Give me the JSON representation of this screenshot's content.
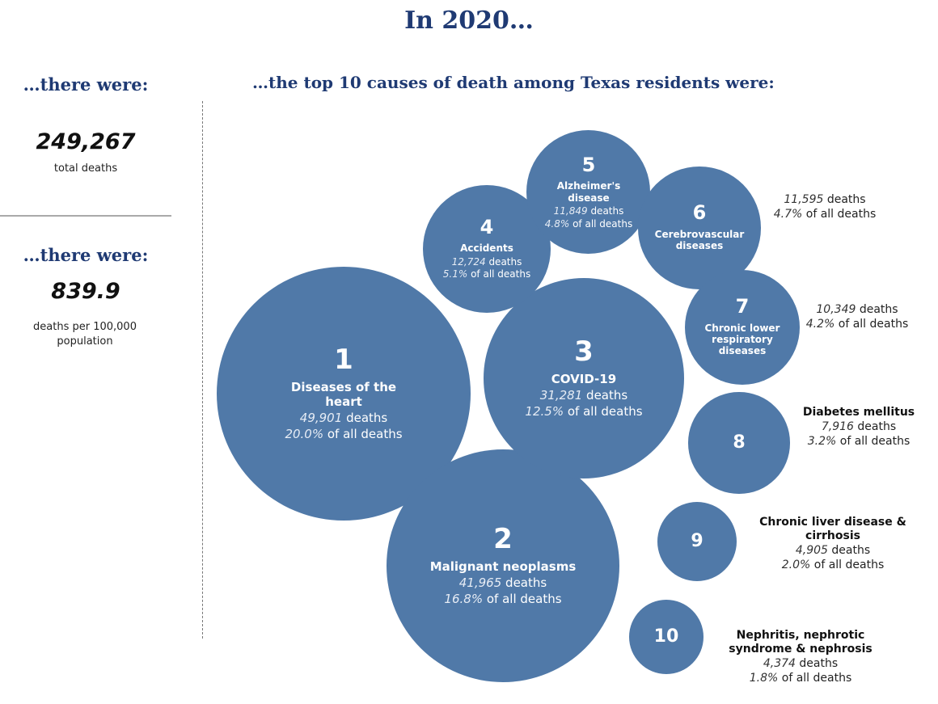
{
  "title": "In 2020…",
  "totals": {
    "heading": "…there were:",
    "value": "249,267",
    "caption": "total deaths"
  },
  "rate": {
    "heading": "…there were:",
    "value": "839.9",
    "caption": "deaths per 100,000 population"
  },
  "chart_data": {
    "type": "bubble",
    "title": "…the top 10 causes of death among Texas residents were:",
    "color": "#5079a8",
    "ranks": [
      "1",
      "2",
      "3",
      "4",
      "5",
      "6",
      "7",
      "8",
      "9",
      "10"
    ],
    "categories": [
      "Diseases of the heart",
      "Malignant neoplasms",
      "COVID-19",
      "Accidents",
      "Alzheimer's disease",
      "Cerebrovascular diseases",
      "Chronic lower respiratory diseases",
      "Diabetes mellitus",
      "Chronic liver disease & cirrhosis",
      "Nephritis, nephrotic syndrome & nephrosis"
    ],
    "values": [
      49901,
      41965,
      31281,
      12724,
      11849,
      11595,
      10349,
      7916,
      4905,
      4374
    ],
    "value_labels": [
      "49,901",
      "41,965",
      "31,281",
      "12,724",
      "11,849",
      "11,595",
      "10,349",
      "7,916",
      "4,905",
      "4,374"
    ],
    "value_unit": "deaths",
    "share_labels": [
      "20.0%",
      "16.8%",
      "12.5%",
      "5.1%",
      "4.8%",
      "4.7%",
      "4.2%",
      "3.2%",
      "2.0%",
      "1.8%"
    ],
    "share_unit": "of all deaths"
  }
}
